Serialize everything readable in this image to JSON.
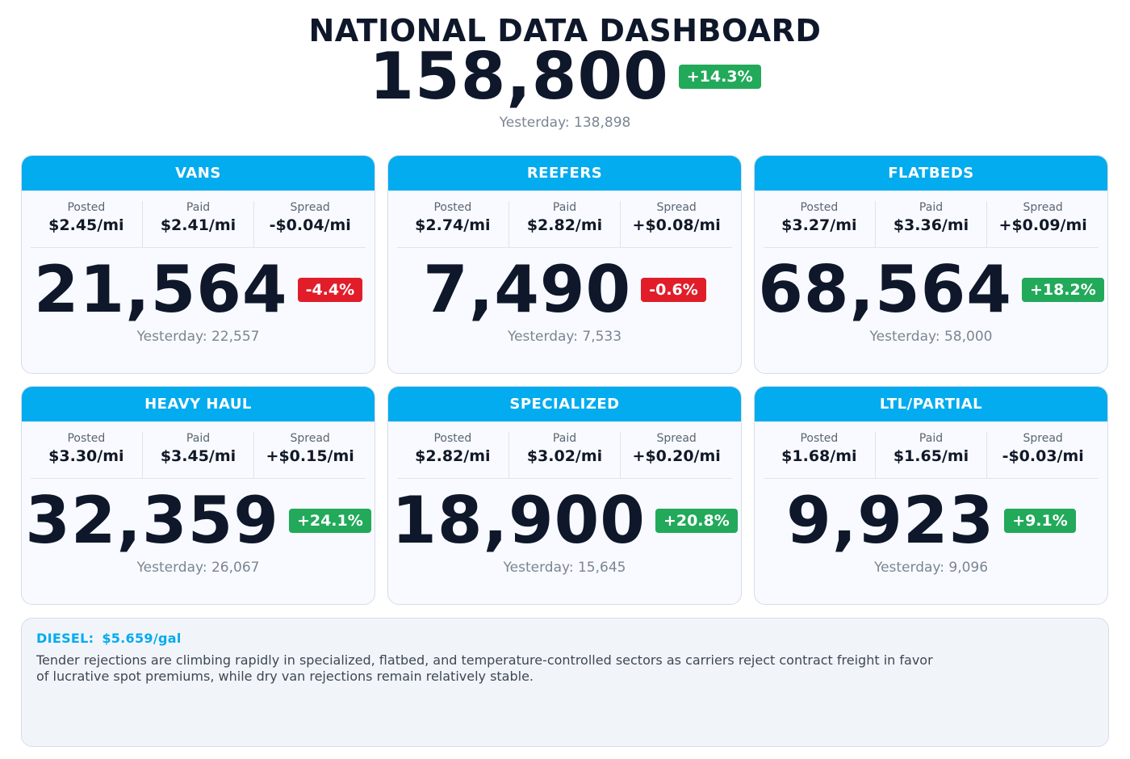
{
  "header": {
    "title": "NATIONAL DATA DASHBOARD",
    "total": "158,800",
    "change": "+14.3%",
    "change_dir": "up",
    "yesterday": "Yesterday: 138,898"
  },
  "stat_labels": {
    "posted": "Posted",
    "paid": "Paid",
    "spread": "Spread"
  },
  "cards": [
    {
      "title": "VANS",
      "posted": "$2.45/mi",
      "paid": "$2.41/mi",
      "spread": "-$0.04/mi",
      "value": "21,564",
      "change": "-4.4%",
      "change_dir": "down",
      "yesterday": "Yesterday: 22,557"
    },
    {
      "title": "REEFERS",
      "posted": "$2.74/mi",
      "paid": "$2.82/mi",
      "spread": "+$0.08/mi",
      "value": "7,490",
      "change": "-0.6%",
      "change_dir": "down",
      "yesterday": "Yesterday: 7,533"
    },
    {
      "title": "FLATBEDS",
      "posted": "$3.27/mi",
      "paid": "$3.36/mi",
      "spread": "+$0.09/mi",
      "value": "68,564",
      "change": "+18.2%",
      "change_dir": "up",
      "yesterday": "Yesterday: 58,000"
    },
    {
      "title": "HEAVY HAUL",
      "posted": "$3.30/mi",
      "paid": "$3.45/mi",
      "spread": "+$0.15/mi",
      "value": "32,359",
      "change": "+24.1%",
      "change_dir": "up",
      "yesterday": "Yesterday: 26,067"
    },
    {
      "title": "SPECIALIZED",
      "posted": "$2.82/mi",
      "paid": "$3.02/mi",
      "spread": "+$0.20/mi",
      "value": "18,900",
      "change": "+20.8%",
      "change_dir": "up",
      "yesterday": "Yesterday: 15,645"
    },
    {
      "title": "LTL/PARTIAL",
      "posted": "$1.68/mi",
      "paid": "$1.65/mi",
      "spread": "-$0.03/mi",
      "value": "9,923",
      "change": "+9.1%",
      "change_dir": "up",
      "yesterday": "Yesterday: 9,096"
    }
  ],
  "footer": {
    "diesel_label": "DIESEL:",
    "diesel_price": "$5.659/gal",
    "summary": "Tender rejections are climbing rapidly in specialized, flatbed, and temperature-controlled sectors as carriers reject contract freight in favor of lucrative spot premiums, while dry van rejections remain relatively stable."
  },
  "colors": {
    "accent": "#03abef",
    "up": "#22a95a",
    "down": "#e11d2a",
    "text_dark": "#0f172a",
    "text_muted": "#7b8592"
  }
}
